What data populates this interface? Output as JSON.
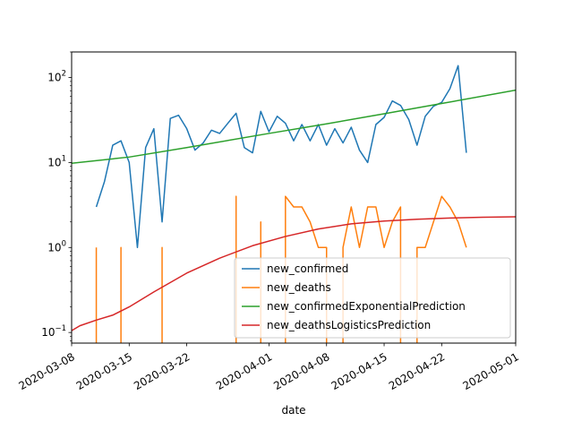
{
  "chart_data": {
    "type": "line",
    "xlabel": "date",
    "ylabel": "",
    "yscale": "log",
    "ylim": [
      0.075,
      200
    ],
    "xlim": [
      "2020-03-08",
      "2020-05-01"
    ],
    "x_ticks": [
      "2020-03-08",
      "2020-03-15",
      "2020-03-22",
      "2020-04-01",
      "2020-04-08",
      "2020-04-15",
      "2020-04-22",
      "2020-05-01"
    ],
    "y_ticks": [
      {
        "value": 0.1,
        "base": "10",
        "exp": "−1"
      },
      {
        "value": 1,
        "base": "10",
        "exp": "0"
      },
      {
        "value": 10,
        "base": "10",
        "exp": "1"
      },
      {
        "value": 100,
        "base": "10",
        "exp": "2"
      }
    ],
    "legend_position": "lower-right",
    "grid": false,
    "series": [
      {
        "name": "new_confirmed",
        "color": "#1f77b4",
        "points": [
          [
            "2020-03-11",
            3
          ],
          [
            "2020-03-12",
            6
          ],
          [
            "2020-03-13",
            16
          ],
          [
            "2020-03-14",
            18
          ],
          [
            "2020-03-15",
            10
          ],
          [
            "2020-03-16",
            1
          ],
          [
            "2020-03-17",
            15
          ],
          [
            "2020-03-18",
            25
          ],
          [
            "2020-03-19",
            2
          ],
          [
            "2020-03-20",
            33
          ],
          [
            "2020-03-21",
            36
          ],
          [
            "2020-03-22",
            25
          ],
          [
            "2020-03-23",
            14
          ],
          [
            "2020-03-24",
            17
          ],
          [
            "2020-03-25",
            24
          ],
          [
            "2020-03-26",
            22
          ],
          [
            "2020-03-27",
            29
          ],
          [
            "2020-03-28",
            38
          ],
          [
            "2020-03-29",
            15
          ],
          [
            "2020-03-30",
            13
          ],
          [
            "2020-03-31",
            40
          ],
          [
            "2020-04-01",
            23
          ],
          [
            "2020-04-02",
            35
          ],
          [
            "2020-04-03",
            29
          ],
          [
            "2020-04-04",
            18
          ],
          [
            "2020-04-05",
            28
          ],
          [
            "2020-04-06",
            18
          ],
          [
            "2020-04-07",
            28
          ],
          [
            "2020-04-08",
            16
          ],
          [
            "2020-04-09",
            25
          ],
          [
            "2020-04-10",
            17
          ],
          [
            "2020-04-11",
            26
          ],
          [
            "2020-04-12",
            14
          ],
          [
            "2020-04-13",
            10
          ],
          [
            "2020-04-14",
            28
          ],
          [
            "2020-04-15",
            34
          ],
          [
            "2020-04-16",
            53
          ],
          [
            "2020-04-17",
            47
          ],
          [
            "2020-04-18",
            32
          ],
          [
            "2020-04-19",
            16
          ],
          [
            "2020-04-20",
            35
          ],
          [
            "2020-04-21",
            46
          ],
          [
            "2020-04-22",
            51
          ],
          [
            "2020-04-23",
            74
          ],
          [
            "2020-04-24",
            138
          ],
          [
            "2020-04-25",
            13
          ]
        ]
      },
      {
        "name": "new_deaths",
        "color": "#ff7f0e",
        "points": [
          [
            "2020-03-11",
            1
          ],
          [
            "2020-03-11",
            null
          ],
          [
            "2020-03-14",
            1
          ],
          [
            "2020-03-14",
            null
          ],
          [
            "2020-03-19",
            1
          ],
          [
            "2020-03-19",
            null
          ],
          [
            "2020-03-28",
            4
          ],
          [
            "2020-03-28",
            null
          ],
          [
            "2020-03-31",
            2
          ],
          [
            "2020-03-31",
            null
          ],
          [
            "2020-04-03",
            4
          ],
          [
            "2020-04-04",
            3
          ],
          [
            "2020-04-05",
            3
          ],
          [
            "2020-04-06",
            2
          ],
          [
            "2020-04-07",
            1
          ],
          [
            "2020-04-08",
            1
          ],
          [
            "2020-04-08",
            null
          ],
          [
            "2020-04-10",
            1
          ],
          [
            "2020-04-11",
            3
          ],
          [
            "2020-04-12",
            1
          ],
          [
            "2020-04-13",
            3
          ],
          [
            "2020-04-14",
            3
          ],
          [
            "2020-04-15",
            1
          ],
          [
            "2020-04-16",
            2
          ],
          [
            "2020-04-17",
            3
          ],
          [
            "2020-04-17",
            null
          ],
          [
            "2020-04-19",
            1
          ],
          [
            "2020-04-20",
            1
          ],
          [
            "2020-04-21",
            2
          ],
          [
            "2020-04-22",
            4
          ],
          [
            "2020-04-23",
            3
          ],
          [
            "2020-04-24",
            2
          ],
          [
            "2020-04-25",
            1
          ]
        ]
      },
      {
        "name": "new_confirmedExponentialPrediction",
        "color": "#2ca02c",
        "points": [
          [
            "2020-03-08",
            9.8
          ],
          [
            "2020-03-15",
            11.6
          ],
          [
            "2020-03-22",
            15
          ],
          [
            "2020-04-01",
            22
          ],
          [
            "2020-04-08",
            28.5
          ],
          [
            "2020-04-15",
            37.5
          ],
          [
            "2020-04-22",
            49.5
          ],
          [
            "2020-05-01",
            71
          ]
        ]
      },
      {
        "name": "new_deathsLogisticsPrediction",
        "color": "#d62728",
        "points": [
          [
            "2020-03-08",
            0.105
          ],
          [
            "2020-03-09",
            0.12
          ],
          [
            "2020-03-11",
            0.14
          ],
          [
            "2020-03-13",
            0.16
          ],
          [
            "2020-03-15",
            0.2
          ],
          [
            "2020-03-18",
            0.3
          ],
          [
            "2020-03-22",
            0.5
          ],
          [
            "2020-03-26",
            0.75
          ],
          [
            "2020-03-30",
            1.05
          ],
          [
            "2020-04-03",
            1.35
          ],
          [
            "2020-04-07",
            1.65
          ],
          [
            "2020-04-11",
            1.9
          ],
          [
            "2020-04-15",
            2.05
          ],
          [
            "2020-04-19",
            2.15
          ],
          [
            "2020-04-23",
            2.22
          ],
          [
            "2020-04-27",
            2.27
          ],
          [
            "2020-05-01",
            2.3
          ]
        ]
      }
    ]
  }
}
